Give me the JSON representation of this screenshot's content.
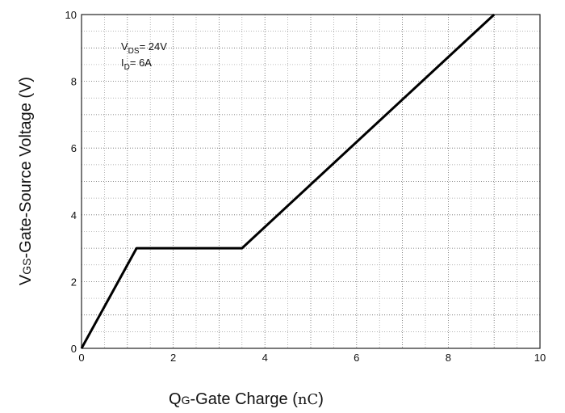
{
  "chart_data": {
    "type": "line",
    "title": "",
    "xlabel": "QG-Gate Charge (nC)",
    "ylabel": "VGS-Gate-Source Voltage (V)",
    "xlim": [
      0,
      10
    ],
    "ylim": [
      0,
      10
    ],
    "x_ticks": [
      "0",
      "2",
      "4",
      "6",
      "8",
      "10"
    ],
    "y_ticks": [
      "0",
      "2",
      "4",
      "6",
      "8",
      "10"
    ],
    "grid": true,
    "grid_style": "dotted",
    "legend": "none",
    "series": [
      {
        "points": [
          [
            0,
            0
          ],
          [
            1.2,
            3
          ],
          [
            3.5,
            3
          ],
          [
            9.0,
            10
          ]
        ],
        "color": "#000000"
      }
    ],
    "annotations": {
      "vds": {
        "main": "V",
        "sub": "DS",
        "rest": "= 24V"
      },
      "id": {
        "main": "I",
        "sub": "D",
        "rest": "= 6A"
      }
    },
    "xlabel_parts": {
      "main": "Q",
      "sub": "G",
      "rest": "-Gate Charge (",
      "unit": "nC",
      "close": ")"
    },
    "ylabel_parts": {
      "main": "V",
      "sub": "GS",
      "rest": "-Gate-Source Voltage (V)"
    }
  }
}
